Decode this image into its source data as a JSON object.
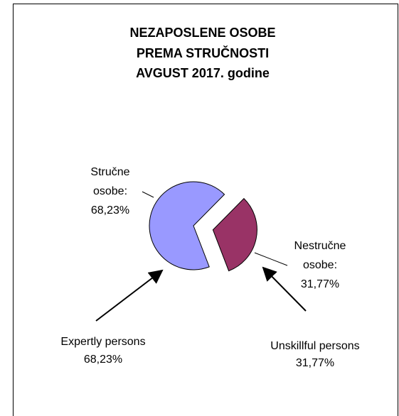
{
  "chart_data": {
    "type": "pie",
    "title": [
      "NEZAPOSLENE OSOBE",
      "PREMA STRUČNOSTI",
      "AVGUST 2017. godine"
    ],
    "categories": [
      "Stručne osobe:",
      "Nestručne osobe:"
    ],
    "values": [
      68.23,
      31.77
    ],
    "value_labels": [
      "68,23%",
      "31,77%"
    ],
    "colors": [
      "#9999ff",
      "#993366"
    ],
    "annotations": [
      "Expertly persons",
      "Unskillful persons"
    ]
  }
}
